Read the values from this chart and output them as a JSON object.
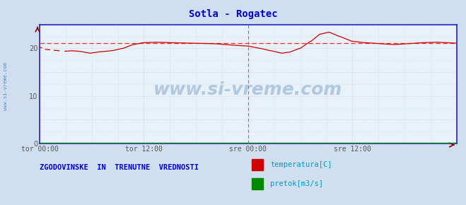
{
  "title": "Sotla - Rogatec",
  "title_color": "#0000cc",
  "bg_color": "#d0dff0",
  "plot_bg_color": "#e8f0f8",
  "grid_color": "#c8c8c8",
  "xlabel_color": "#555555",
  "ylim": [
    0,
    25
  ],
  "yticks": [
    0,
    5,
    10,
    15,
    20,
    25
  ],
  "ytick_labels": [
    "0",
    "",
    "10",
    "",
    "20",
    ""
  ],
  "xlim": [
    0,
    576
  ],
  "xtick_positions": [
    0,
    144,
    288,
    432,
    576
  ],
  "xtick_labels": [
    "tor 00:00",
    "tor 12:00",
    "sre 00:00",
    "sre 12:00",
    ""
  ],
  "minor_xtick_positions": [
    36,
    72,
    108,
    180,
    216,
    252,
    324,
    360,
    396,
    468,
    504,
    540
  ],
  "minor_ytick_positions": [
    2.5,
    7.5,
    12.5,
    17.5,
    22.5
  ],
  "avg_line_y": 21.05,
  "avg_line_color": "#ff2222",
  "temp_line_color": "#cc0000",
  "flow_line_color": "#008800",
  "vline_color": "#cc44cc",
  "vline_x": 288,
  "vline2_x": 576,
  "axis_color": "#2222cc",
  "watermark_text": "www.si-vreme.com",
  "watermark_color": "#b0c8e0",
  "watermark_fontsize": 18,
  "sidebar_text": "www.si-vreme.com",
  "sidebar_color": "#5588bb",
  "bottom_text": "ZGODOVINSKE  IN  TRENUTNE  VREDNOSTI",
  "bottom_text_color": "#0000cc",
  "legend_items": [
    "temperatura[C]",
    "pretok[m3/s]"
  ],
  "legend_colors": [
    "#cc0000",
    "#008800"
  ],
  "legend_text_color": "#0099cc"
}
